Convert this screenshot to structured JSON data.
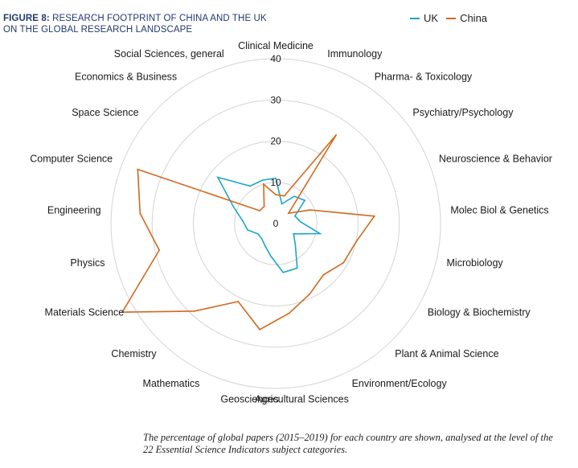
{
  "figure": {
    "lead": "FIGURE 8:",
    "title": "RESEARCH FOOTPRINT OF CHINA AND THE UK ON THE GLOBAL RESEARCH LANDSCAPE",
    "caption": "The percentage of global papers (2015–2019) for each country are shown, analysed at the level of the 22 Essential Science Indicators subject categories."
  },
  "chart_data": {
    "type": "radar",
    "categories": [
      "Clinical Medicine",
      "Immunology",
      "Pharma- & Toxicology",
      "Psychiatry/Psychology",
      "Neuroscience & Behavior",
      "Molec Biol & Genetics",
      "Microbiology",
      "Biology & Biochemistry",
      "Plant & Animal Science",
      "Environment/Ecology",
      "Agricultural Sciences",
      "Geosciences",
      "Mathematics",
      "Chemistry",
      "Materials Science",
      "Physics",
      "Engineering",
      "Computer Science",
      "Space Science",
      "Economics & Business",
      "Social Sciences, general"
    ],
    "radial_ticks": [
      0,
      10,
      20,
      30,
      40
    ],
    "rlim": [
      0,
      40
    ],
    "grid": true,
    "legend_position": "top-right",
    "series": [
      {
        "name": "UK",
        "color": "#1ba6cc",
        "values": [
          11,
          5,
          8,
          9,
          5,
          6,
          11,
          5,
          7,
          12,
          12,
          8,
          6,
          5,
          5,
          7,
          8,
          11,
          18,
          11,
          11
        ]
      },
      {
        "name": "China",
        "color": "#d2691e",
        "values": [
          7,
          7,
          26,
          4,
          9,
          24,
          20,
          19,
          17,
          19,
          22,
          26,
          21,
          29,
          43,
          29,
          33,
          36,
          5,
          5,
          10
        ]
      }
    ]
  }
}
